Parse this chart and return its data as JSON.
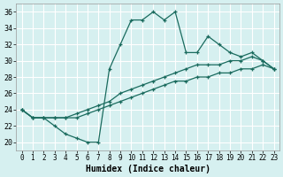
{
  "xlabel": "Humidex (Indice chaleur)",
  "bg_color": "#d6f0f0",
  "grid_color": "#ffffff",
  "line_color": "#1a6b5e",
  "xlim": [
    -0.5,
    23.5
  ],
  "ylim": [
    19,
    37
  ],
  "xticks": [
    0,
    1,
    2,
    3,
    4,
    5,
    6,
    7,
    8,
    9,
    10,
    11,
    12,
    13,
    14,
    15,
    16,
    17,
    18,
    19,
    20,
    21,
    22,
    23
  ],
  "yticks": [
    20,
    22,
    24,
    26,
    28,
    30,
    32,
    34,
    36
  ],
  "series": [
    [
      24,
      23,
      23,
      22,
      21,
      20.5,
      20,
      20,
      29,
      32,
      35,
      35,
      36,
      35,
      36,
      31,
      31,
      33,
      32,
      31,
      30.5,
      31,
      30,
      29
    ],
    [
      24,
      23,
      23,
      23,
      23,
      23.5,
      24,
      24.5,
      25,
      26,
      26.5,
      27,
      27.5,
      28,
      28.5,
      29,
      29.5,
      29.5,
      29.5,
      30,
      30,
      30.5,
      30,
      29
    ],
    [
      24,
      23,
      23,
      23,
      23,
      23,
      23.5,
      24,
      24.5,
      25,
      25.5,
      26,
      26.5,
      27,
      27.5,
      27.5,
      28,
      28,
      28.5,
      28.5,
      29,
      29,
      29.5,
      29
    ]
  ]
}
